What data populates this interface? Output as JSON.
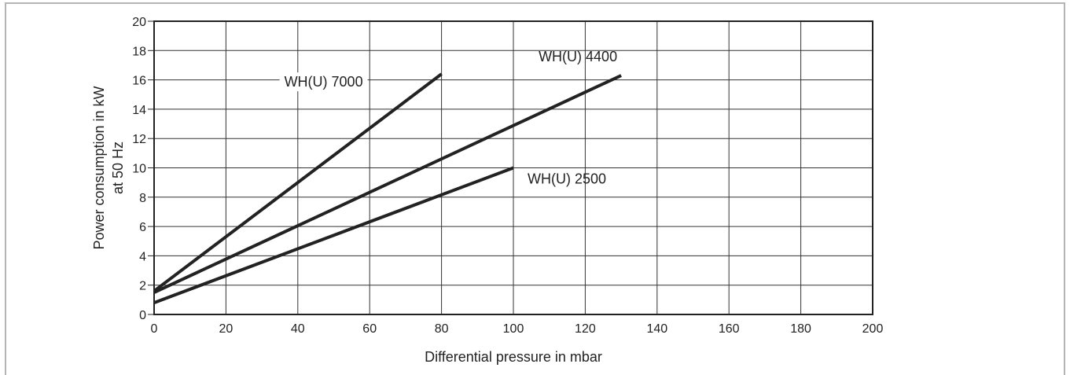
{
  "chart_data": {
    "type": "line",
    "xlabel": "Differential pressure in mbar",
    "ylabel_lines": [
      "Power consumption in kW",
      "at 50 Hz"
    ],
    "xlim": [
      0,
      200
    ],
    "ylim": [
      0,
      20
    ],
    "x_ticks": [
      0,
      20,
      40,
      60,
      80,
      100,
      120,
      140,
      160,
      180,
      200
    ],
    "y_ticks": [
      0,
      2,
      4,
      6,
      8,
      10,
      12,
      14,
      16,
      18,
      20
    ],
    "grid": true,
    "legend": "none",
    "series": [
      {
        "name": "WH(U) 7000",
        "x": [
          0,
          80
        ],
        "y": [
          1.6,
          16.4
        ],
        "color": "#222222"
      },
      {
        "name": "WH(U) 4400",
        "x": [
          0,
          130
        ],
        "y": [
          1.5,
          16.3
        ],
        "color": "#222222"
      },
      {
        "name": "WH(U) 2500",
        "x": [
          0,
          100
        ],
        "y": [
          0.8,
          10.0
        ],
        "color": "#222222"
      }
    ]
  }
}
